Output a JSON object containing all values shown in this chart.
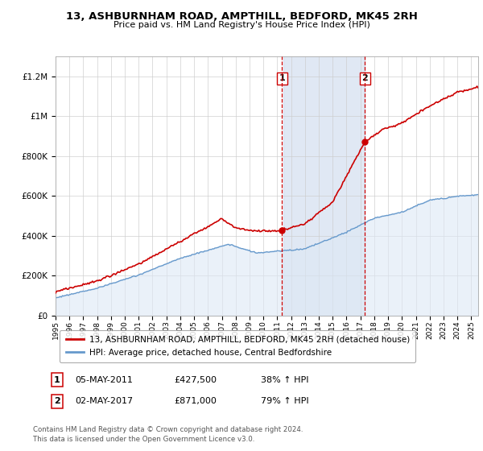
{
  "title": "13, ASHBURNHAM ROAD, AMPTHILL, BEDFORD, MK45 2RH",
  "subtitle": "Price paid vs. HM Land Registry's House Price Index (HPI)",
  "ylabel_ticks": [
    "£0",
    "£200K",
    "£400K",
    "£600K",
    "£800K",
    "£1M",
    "£1.2M"
  ],
  "ytick_values": [
    0,
    200000,
    400000,
    600000,
    800000,
    1000000,
    1200000
  ],
  "ylim": [
    0,
    1300000
  ],
  "xlim_start": 1995.0,
  "xlim_end": 2025.5,
  "xtick_years": [
    1995,
    1996,
    1997,
    1998,
    1999,
    2000,
    2001,
    2002,
    2003,
    2004,
    2005,
    2006,
    2007,
    2008,
    2009,
    2010,
    2011,
    2012,
    2013,
    2014,
    2015,
    2016,
    2017,
    2018,
    2019,
    2020,
    2021,
    2022,
    2023,
    2024,
    2025
  ],
  "red_line_color": "#cc0000",
  "blue_line_color": "#6699cc",
  "blue_fill_color": "#dde8f5",
  "marker_color": "#cc0000",
  "dashed_line_color": "#cc0000",
  "highlight_fill": "#ccd9ee",
  "sale1_x": 2011.35,
  "sale1_y": 427500,
  "sale2_x": 2017.33,
  "sale2_y": 871000,
  "legend_line1": "13, ASHBURNHAM ROAD, AMPTHILL, BEDFORD, MK45 2RH (detached house)",
  "legend_line2": "HPI: Average price, detached house, Central Bedfordshire",
  "annotation1_date": "05-MAY-2011",
  "annotation1_price": "£427,500",
  "annotation1_hpi": "38% ↑ HPI",
  "annotation2_date": "02-MAY-2017",
  "annotation2_price": "£871,000",
  "annotation2_hpi": "79% ↑ HPI",
  "footer": "Contains HM Land Registry data © Crown copyright and database right 2024.\nThis data is licensed under the Open Government Licence v3.0.",
  "background_color": "#ffffff",
  "grid_color": "#cccccc"
}
